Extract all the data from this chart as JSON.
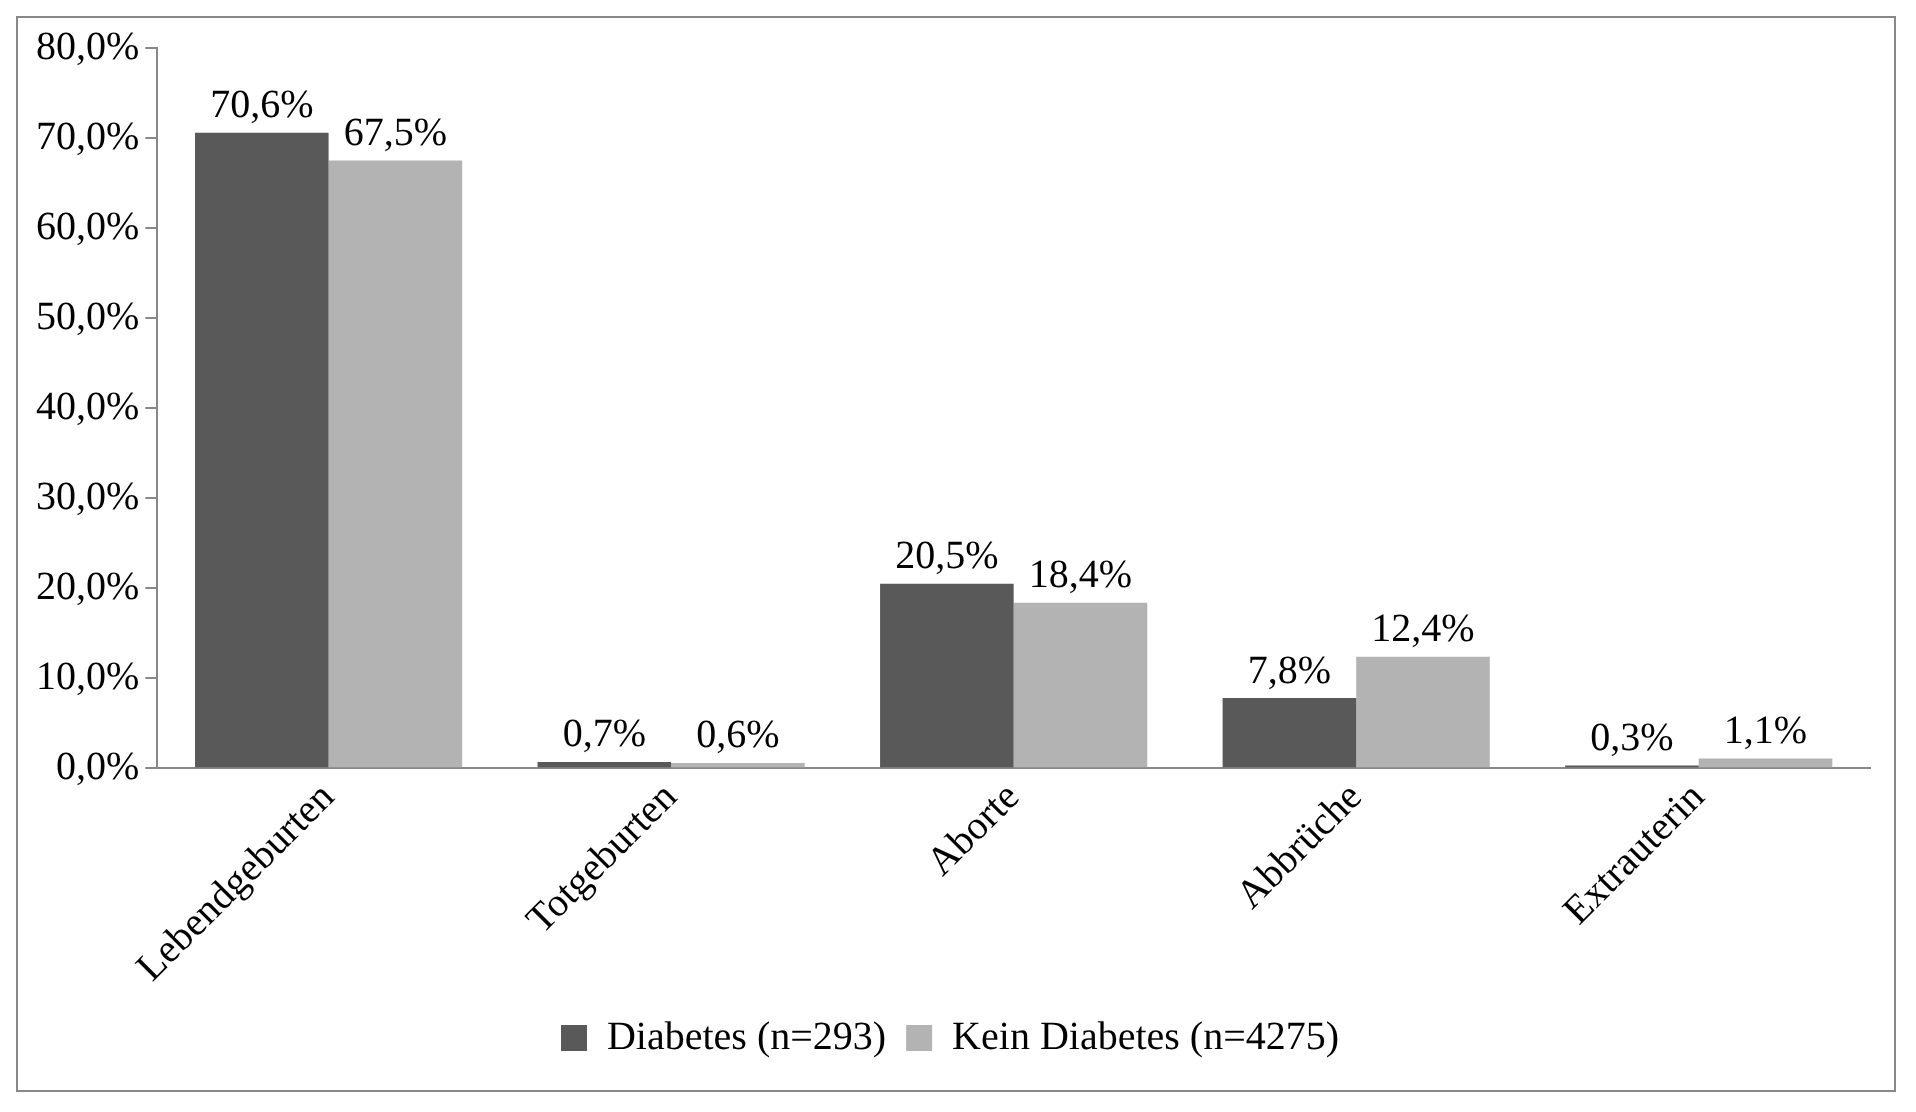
{
  "chart_data": {
    "type": "bar",
    "categories": [
      "Lebendgeburten",
      "Totgeburten",
      "Aborte",
      "Abbrüche",
      "Extrauterin"
    ],
    "series": [
      {
        "name": "Diabetes (n=293)",
        "color": "#595959",
        "values": [
          70.6,
          0.7,
          20.5,
          7.8,
          0.3
        ],
        "value_labels": [
          "70,6%",
          "0,7%",
          "20,5%",
          "7,8%",
          "0,3%"
        ]
      },
      {
        "name": "Kein Diabetes (n=4275)",
        "color": "#b3b3b3",
        "values": [
          67.5,
          0.6,
          18.4,
          12.4,
          1.1
        ],
        "value_labels": [
          "67,5%",
          "0,6%",
          "18,4%",
          "12,4%",
          "1,1%"
        ]
      }
    ],
    "ylim": [
      0,
      80
    ],
    "yticks": [
      {
        "value": 0,
        "label": "0,0%"
      },
      {
        "value": 10,
        "label": "10,0%"
      },
      {
        "value": 20,
        "label": "20,0%"
      },
      {
        "value": 30,
        "label": "30,0%"
      },
      {
        "value": 40,
        "label": "40,0%"
      },
      {
        "value": 50,
        "label": "50,0%"
      },
      {
        "value": 60,
        "label": "60,0%"
      },
      {
        "value": 70,
        "label": "70,0%"
      },
      {
        "value": 80,
        "label": "80,0%"
      }
    ],
    "grid": false,
    "legend": "bottom"
  }
}
